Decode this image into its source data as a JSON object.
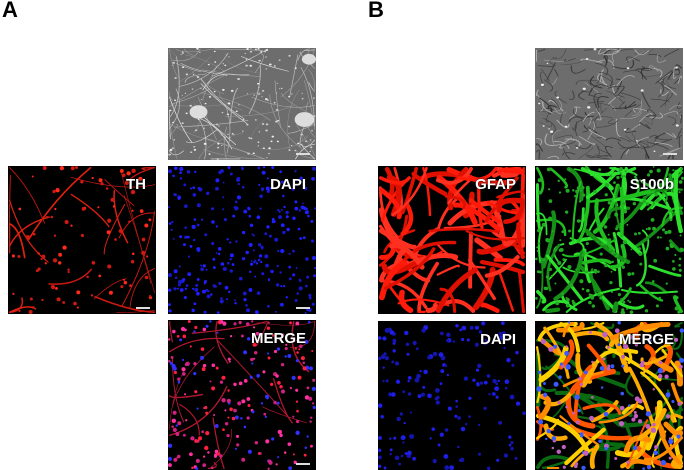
{
  "figure": {
    "panel_a": {
      "label": "A",
      "images": [
        {
          "id": "phase",
          "kind": "phase-contrast",
          "channel": ""
        },
        {
          "id": "th",
          "kind": "fluorescence",
          "channel": "TH",
          "color": "#ff2a1a"
        },
        {
          "id": "dapi",
          "kind": "fluorescence",
          "channel": "DAPI",
          "color": "#2020ff"
        },
        {
          "id": "merge",
          "kind": "fluorescence",
          "channel": "MERGE",
          "color": "#ff3090"
        }
      ]
    },
    "panel_b": {
      "label": "B",
      "images": [
        {
          "id": "phase",
          "kind": "phase-contrast",
          "channel": ""
        },
        {
          "id": "gfap",
          "kind": "fluorescence",
          "channel": "GFAP",
          "color": "#ff1a0a"
        },
        {
          "id": "s100b",
          "kind": "fluorescence",
          "channel": "S100b",
          "color": "#22dd22"
        },
        {
          "id": "dapi",
          "kind": "fluorescence",
          "channel": "DAPI",
          "color": "#2020ff"
        },
        {
          "id": "merge",
          "kind": "fluorescence",
          "channel": "MERGE",
          "color": "#ffaa00"
        }
      ]
    }
  }
}
